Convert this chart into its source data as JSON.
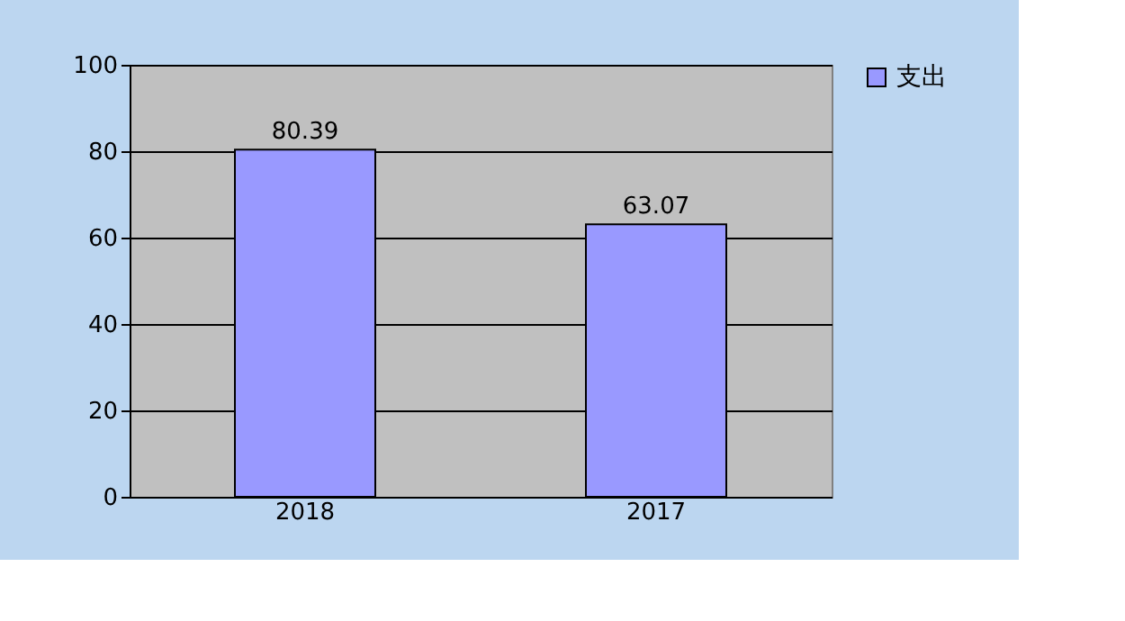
{
  "chart_data": {
    "type": "bar",
    "categories": [
      "2018",
      "2017"
    ],
    "series": [
      {
        "name": "支出",
        "color": "#9999ff",
        "values": [
          80.39,
          63.07
        ]
      }
    ],
    "ylim": [
      0,
      100
    ],
    "yticks": [
      0,
      20,
      40,
      60,
      80,
      100
    ],
    "grid": "y",
    "legend": "right",
    "data_labels": true
  }
}
